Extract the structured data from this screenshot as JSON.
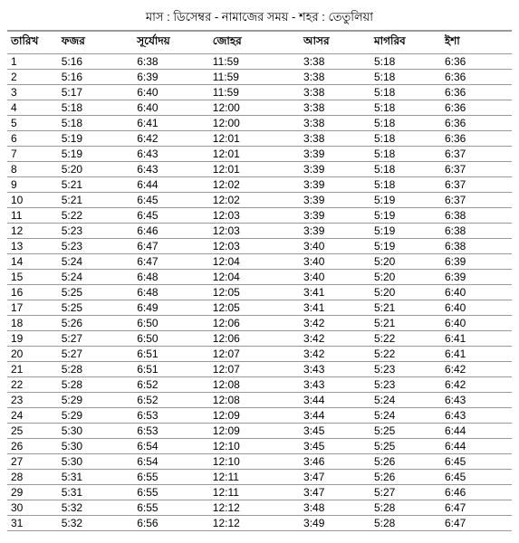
{
  "title": "মাস : ডিসেম্বর - নামাজের সময় - শহর : তেতুলিয়া",
  "columns": [
    "তারিখ",
    "ফজর",
    "সূর্যোদয়",
    "জোহর",
    "আসর",
    "মাগরিব",
    "ইশা"
  ],
  "rows": [
    [
      "1",
      "5:16",
      "6:38",
      "11:59",
      "3:38",
      "5:18",
      "6:36"
    ],
    [
      "2",
      "5:16",
      "6:39",
      "11:59",
      "3:38",
      "5:18",
      "6:36"
    ],
    [
      "3",
      "5:17",
      "6:40",
      "11:59",
      "3:38",
      "5:18",
      "6:36"
    ],
    [
      "4",
      "5:18",
      "6:40",
      "12:00",
      "3:38",
      "5:18",
      "6:36"
    ],
    [
      "5",
      "5:18",
      "6:41",
      "12:00",
      "3:38",
      "5:18",
      "6:36"
    ],
    [
      "6",
      "5:19",
      "6:42",
      "12:01",
      "3:38",
      "5:18",
      "6:36"
    ],
    [
      "7",
      "5:19",
      "6:43",
      "12:01",
      "3:39",
      "5:18",
      "6:37"
    ],
    [
      "8",
      "5:20",
      "6:43",
      "12:01",
      "3:39",
      "5:18",
      "6:37"
    ],
    [
      "9",
      "5:21",
      "6:44",
      "12:02",
      "3:39",
      "5:18",
      "6:37"
    ],
    [
      "10",
      "5:21",
      "6:45",
      "12:02",
      "3:39",
      "5:19",
      "6:37"
    ],
    [
      "11",
      "5:22",
      "6:45",
      "12:03",
      "3:39",
      "5:19",
      "6:38"
    ],
    [
      "12",
      "5:23",
      "6:46",
      "12:03",
      "3:39",
      "5:19",
      "6:38"
    ],
    [
      "13",
      "5:23",
      "6:47",
      "12:03",
      "3:40",
      "5:19",
      "6:38"
    ],
    [
      "14",
      "5:24",
      "6:47",
      "12:04",
      "3:40",
      "5:20",
      "6:39"
    ],
    [
      "15",
      "5:24",
      "6:48",
      "12:04",
      "3:40",
      "5:20",
      "6:39"
    ],
    [
      "16",
      "5:25",
      "6:48",
      "12:05",
      "3:41",
      "5:20",
      "6:40"
    ],
    [
      "17",
      "5:25",
      "6:49",
      "12:05",
      "3:41",
      "5:21",
      "6:40"
    ],
    [
      "18",
      "5:26",
      "6:50",
      "12:06",
      "3:42",
      "5:21",
      "6:40"
    ],
    [
      "19",
      "5:27",
      "6:50",
      "12:06",
      "3:42",
      "5:22",
      "6:41"
    ],
    [
      "20",
      "5:27",
      "6:51",
      "12:07",
      "3:42",
      "5:22",
      "6:41"
    ],
    [
      "21",
      "5:28",
      "6:51",
      "12:07",
      "3:43",
      "5:23",
      "6:42"
    ],
    [
      "22",
      "5:28",
      "6:52",
      "12:08",
      "3:43",
      "5:23",
      "6:42"
    ],
    [
      "23",
      "5:29",
      "6:52",
      "12:08",
      "3:44",
      "5:24",
      "6:43"
    ],
    [
      "24",
      "5:29",
      "6:53",
      "12:09",
      "3:44",
      "5:24",
      "6:43"
    ],
    [
      "25",
      "5:30",
      "6:53",
      "12:09",
      "3:45",
      "5:25",
      "6:44"
    ],
    [
      "26",
      "5:30",
      "6:54",
      "12:10",
      "3:45",
      "5:25",
      "6:44"
    ],
    [
      "27",
      "5:30",
      "6:54",
      "12:10",
      "3:46",
      "5:26",
      "6:45"
    ],
    [
      "28",
      "5:31",
      "6:55",
      "12:11",
      "3:47",
      "5:26",
      "6:45"
    ],
    [
      "29",
      "5:31",
      "6:55",
      "12:11",
      "3:47",
      "5:27",
      "6:46"
    ],
    [
      "30",
      "5:32",
      "6:55",
      "12:12",
      "3:48",
      "5:28",
      "6:47"
    ],
    [
      "31",
      "5:32",
      "6:56",
      "12:12",
      "3:49",
      "5:28",
      "6:47"
    ]
  ]
}
